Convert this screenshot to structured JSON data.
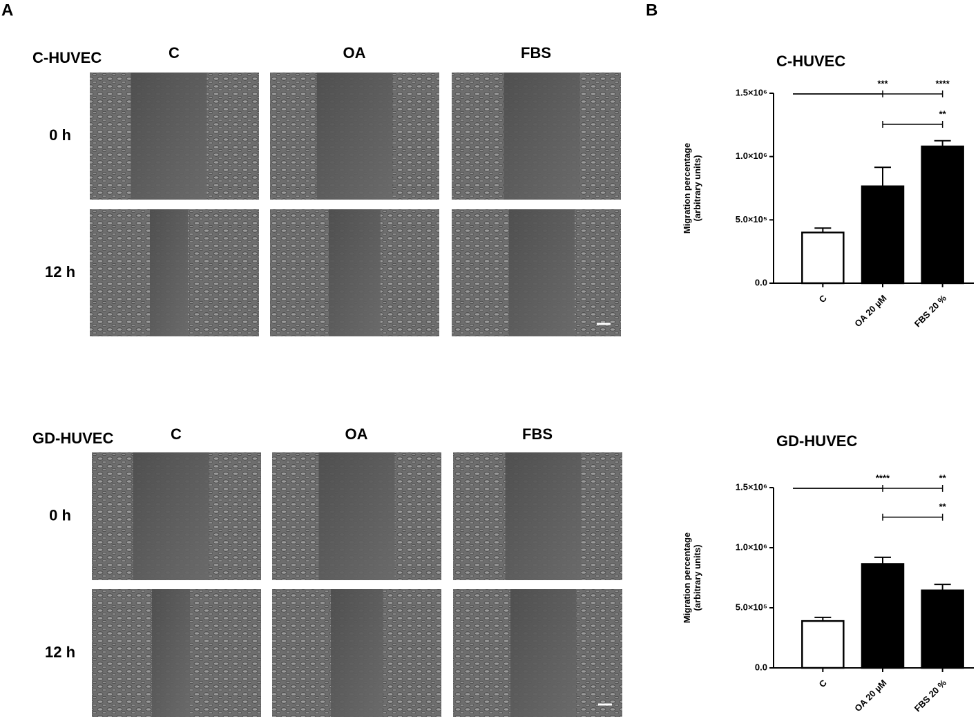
{
  "panels": {
    "a": "A",
    "b": "B"
  },
  "image_grids": [
    {
      "group": "C-HUVEC",
      "columns": [
        "C",
        "OA",
        "FBS"
      ],
      "rows": [
        "0 h",
        "12 h"
      ]
    },
    {
      "group": "GD-HUVEC",
      "columns": [
        "C",
        "OA",
        "FBS"
      ],
      "rows": [
        "0 h",
        "12 h"
      ]
    }
  ],
  "chart_data": [
    {
      "type": "bar",
      "title": "C-HUVEC",
      "y_label": [
        "Migration percentage",
        "(arbitrary units)"
      ],
      "categories": [
        "C",
        "OA 20 µM",
        "FBS 20 %"
      ],
      "values": [
        400000,
        765000,
        1080000
      ],
      "errors": [
        35000,
        150000,
        45000
      ],
      "colors": [
        "#ffffff",
        "#000000",
        "#000000"
      ],
      "ylim": [
        0,
        1500000
      ],
      "yticks": [
        {
          "value": 0,
          "label": "0.0"
        },
        {
          "value": 500000,
          "label": "5.0×10⁵"
        },
        {
          "value": 1000000,
          "label": "1.0×10⁶"
        },
        {
          "value": 1500000,
          "label": "1.5×10⁶"
        }
      ],
      "comparisons": [
        {
          "pair": [
            "C",
            "OA 20 µM"
          ],
          "label": "***"
        },
        {
          "pair": [
            "C",
            "FBS 20 %"
          ],
          "label": "****"
        },
        {
          "pair": [
            "OA 20 µM",
            "FBS 20 %"
          ],
          "label": "**"
        }
      ]
    },
    {
      "type": "bar",
      "title": "GD-HUVEC",
      "y_label": [
        "Migration percentage",
        "(arbitrary units)"
      ],
      "categories": [
        "C",
        "OA 20 µM",
        "FBS 20 %"
      ],
      "values": [
        390000,
        865000,
        645000
      ],
      "errors": [
        30000,
        55000,
        50000
      ],
      "colors": [
        "#ffffff",
        "#000000",
        "#000000"
      ],
      "ylim": [
        0,
        1500000
      ],
      "yticks": [
        {
          "value": 0,
          "label": "0.0"
        },
        {
          "value": 500000,
          "label": "5.0×10⁵"
        },
        {
          "value": 1000000,
          "label": "1.0×10⁶"
        },
        {
          "value": 1500000,
          "label": "1.5×10⁶"
        }
      ],
      "comparisons": [
        {
          "pair": [
            "C",
            "OA 20 µM"
          ],
          "label": "****"
        },
        {
          "pair": [
            "C",
            "FBS 20 %"
          ],
          "label": "**"
        },
        {
          "pair": [
            "OA 20 µM",
            "FBS 20 %"
          ],
          "label": "**"
        }
      ]
    }
  ]
}
